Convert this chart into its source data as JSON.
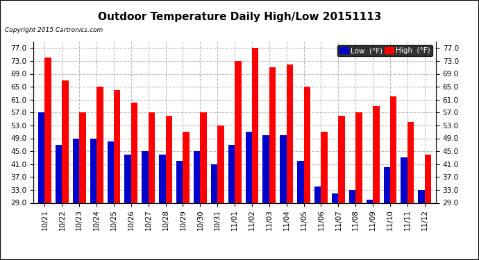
{
  "title": "Outdoor Temperature Daily High/Low 20151113",
  "copyright": "Copyright 2015 Cartronics.com",
  "legend_low_label": "Low  (°F)",
  "legend_high_label": "High  (°F)",
  "categories": [
    "10/21",
    "10/22",
    "10/23",
    "10/24",
    "10/25",
    "10/26",
    "10/27",
    "10/28",
    "10/29",
    "10/30",
    "10/31",
    "11/01",
    "11/02",
    "11/03",
    "11/04",
    "11/05",
    "11/06",
    "11/07",
    "11/08",
    "11/09",
    "11/10",
    "11/11",
    "11/12"
  ],
  "high_temps": [
    74,
    67,
    57,
    65,
    64,
    60,
    57,
    56,
    51,
    57,
    53,
    73,
    77,
    71,
    72,
    65,
    51,
    56,
    57,
    59,
    62,
    54,
    44
  ],
  "low_temps": [
    57,
    47,
    49,
    49,
    48,
    44,
    45,
    44,
    42,
    45,
    41,
    47,
    51,
    50,
    50,
    42,
    34,
    32,
    33,
    30,
    40,
    43,
    33
  ],
  "ymin": 29.0,
  "ymax": 79.0,
  "yticks": [
    29.0,
    33.0,
    37.0,
    41.0,
    45.0,
    49.0,
    53.0,
    57.0,
    61.0,
    65.0,
    69.0,
    73.0,
    77.0
  ],
  "high_color": "#ff0000",
  "low_color": "#0000cc",
  "background_color": "#ffffff",
  "grid_color": "#bbbbbb",
  "title_fontsize": 11,
  "tick_fontsize": 7.5,
  "bar_width": 0.38,
  "fig_width": 6.9,
  "fig_height": 3.75,
  "dpi": 100
}
